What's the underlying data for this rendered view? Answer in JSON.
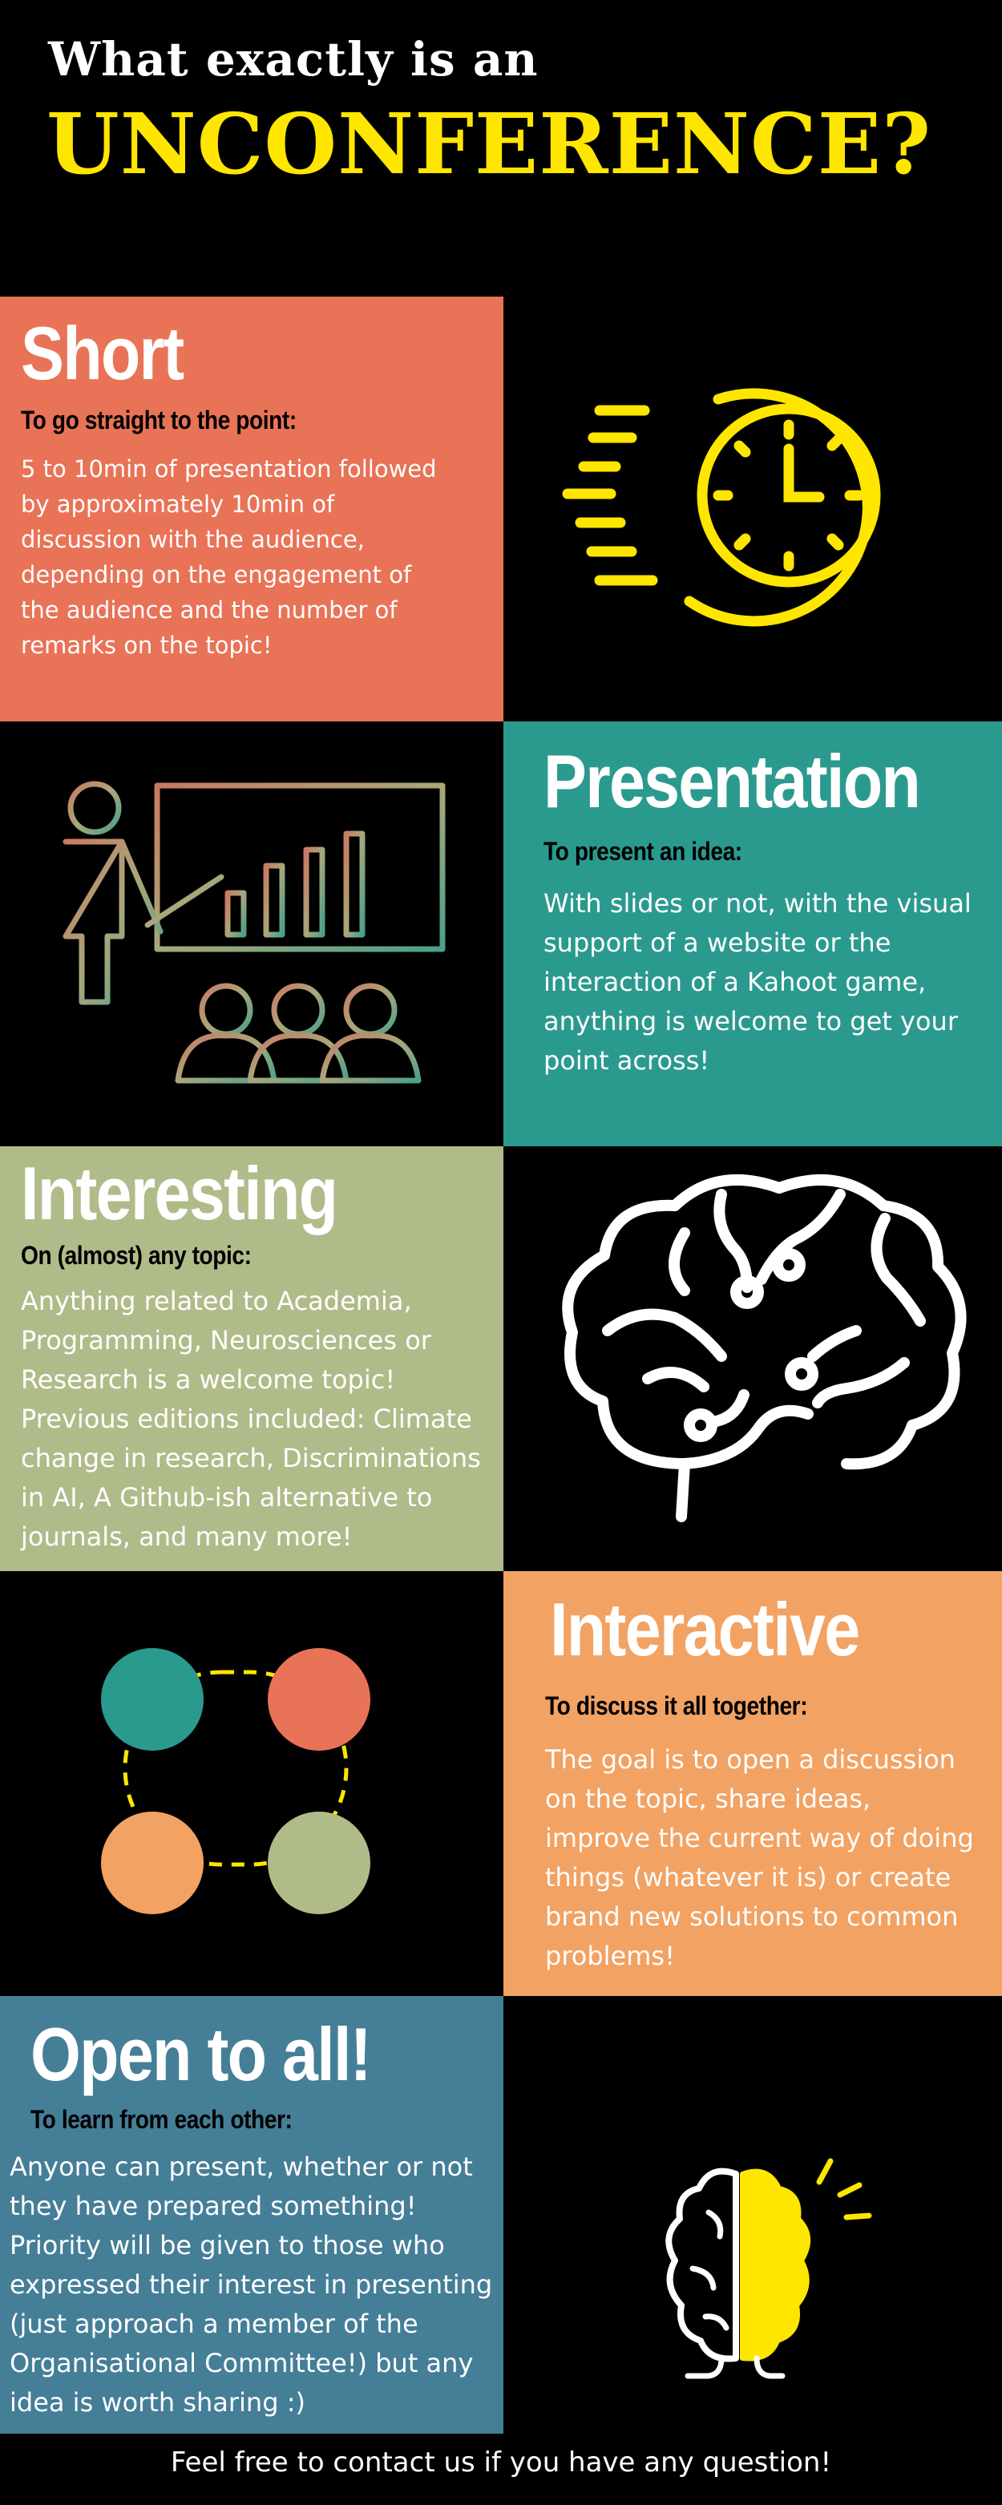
{
  "header": {
    "title_small": "What exactly is an",
    "title_big": "UNCONFERENCE?"
  },
  "sections": [
    {
      "heading": "Short",
      "subheading": "To go straight to the point:",
      "body": "5 to 10min of presentation followed by approximately 10min of discussion with the audience, depending on the engagement of the audience and the number of remarks on the topic!",
      "color": "#e97357",
      "icon": "clock-icon"
    },
    {
      "heading": "Presentation",
      "subheading": "To present an idea:",
      "body": "With slides or not, with the visual support of a website or the interaction of a Kahoot game, anything is welcome to get your point across!",
      "color": "#2b9a8e",
      "icon": "presentation-icon"
    },
    {
      "heading": "Interesting",
      "subheading": "On (almost) any topic:",
      "body": "Anything related to Academia, Programming, Neurosciences or Research is a welcome topic! Previous editions included: Climate change in research, Discriminations in AI, A Github-ish alternative to journals, and many more!",
      "color": "#b0bb8a",
      "icon": "brain-circuit-icon"
    },
    {
      "heading": "Interactive",
      "subheading": "To discuss it all together:",
      "body": "The goal is to open a discussion on the topic, share ideas, improve the current way of doing things (whatever it is) or create brand new solutions to common problems!",
      "color": "#f2a263",
      "icon": "connected-circles-icon"
    },
    {
      "heading": "Open to all!",
      "subheading": "To learn from each other:",
      "body": "Anyone can present, whether or not they have prepared something! Priority will be given to those who expressed their interest in presenting (just approach a member of the Organisational Committee!) but any idea is worth sharing :)",
      "color": "#457e97",
      "icon": "lightbulb-brain-icon"
    }
  ],
  "footer": {
    "text": "Feel free to contact us if you have any question!"
  },
  "colors": {
    "background": "#000000",
    "accent_yellow": "#ffe600",
    "coral": "#e97357",
    "teal": "#2b9a8e",
    "sage": "#b0bb8a",
    "orange": "#f2a263",
    "steel_blue": "#457e97"
  }
}
